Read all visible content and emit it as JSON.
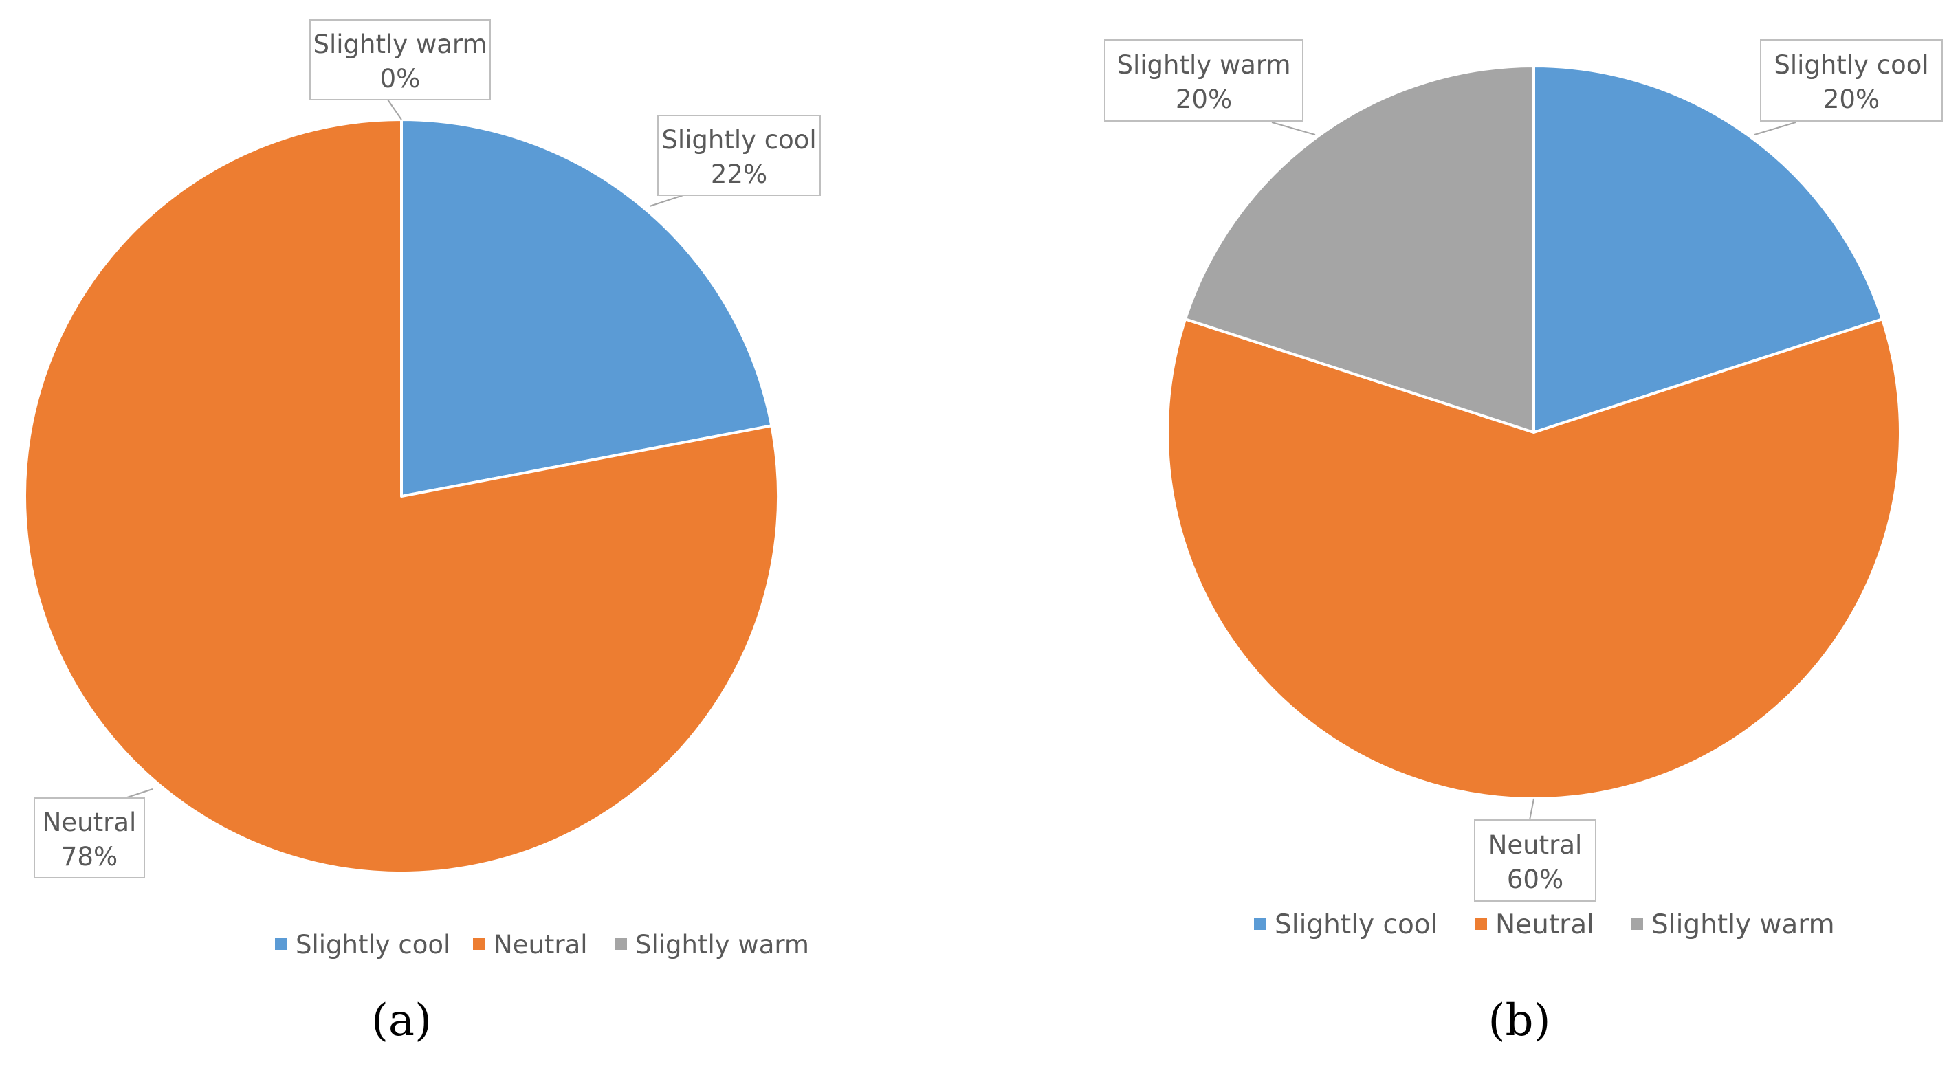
{
  "chart_data": [
    {
      "type": "pie",
      "categories": [
        "Slightly cool",
        "Neutral",
        "Slightly warm"
      ],
      "values": [
        22,
        78,
        0
      ],
      "data_labels": [
        {
          "category": "Slightly cool",
          "value": "22%"
        },
        {
          "category": "Neutral",
          "value": "78%"
        },
        {
          "category": "Slightly warm",
          "value": "0%"
        }
      ],
      "colors": [
        "#5b9bd5",
        "#ed7d31",
        "#a5a5a5"
      ],
      "start_angle_deg": 0,
      "direction": "clockwise",
      "legend": {
        "position": "bottom",
        "entries": [
          "Slightly cool",
          "Neutral",
          "Slightly warm"
        ]
      },
      "panel_label": "(a)"
    },
    {
      "type": "pie",
      "categories": [
        "Slightly cool",
        "Neutral",
        "Slightly warm"
      ],
      "values": [
        20,
        60,
        20
      ],
      "data_labels": [
        {
          "category": "Slightly cool",
          "value": "20%"
        },
        {
          "category": "Neutral",
          "value": "60%"
        },
        {
          "category": "Slightly warm",
          "value": "20%"
        }
      ],
      "colors": [
        "#5b9bd5",
        "#ed7d31",
        "#a5a5a5"
      ],
      "start_angle_deg": 0,
      "direction": "clockwise",
      "legend": {
        "position": "bottom",
        "entries": [
          "Slightly cool",
          "Neutral",
          "Slightly warm"
        ]
      },
      "panel_label": "(b)"
    }
  ]
}
